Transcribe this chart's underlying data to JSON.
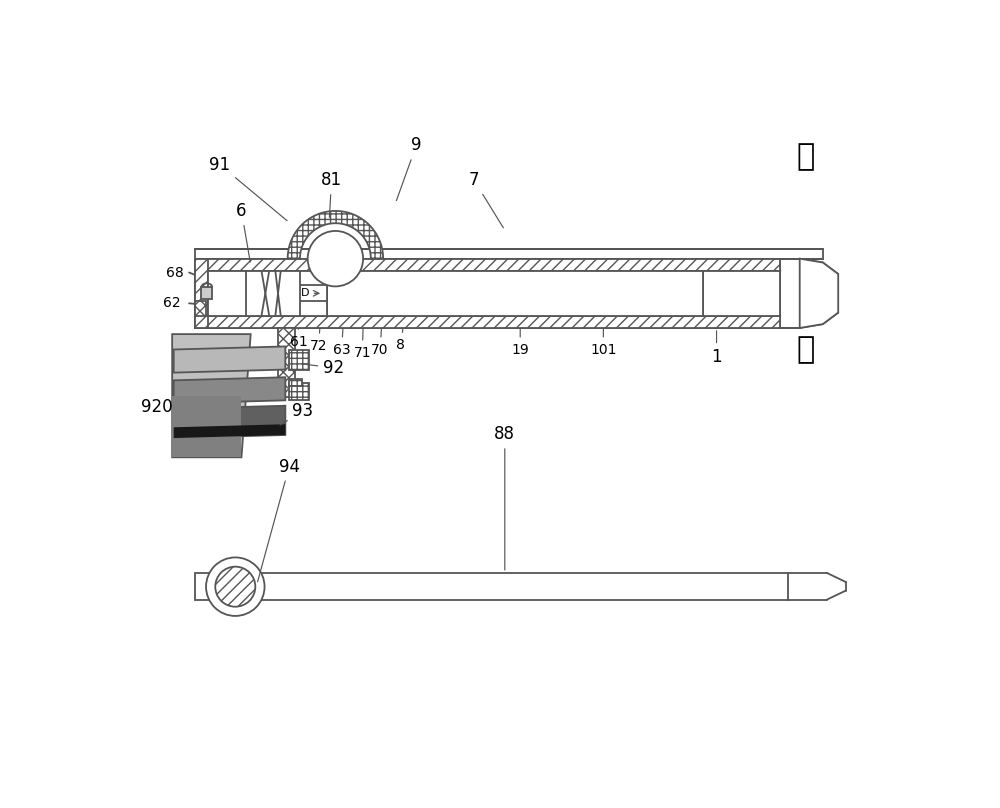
{
  "bg": "#ffffff",
  "lc": "#555555",
  "lw": 1.3,
  "top_label": "上",
  "bot_label": "下",
  "grays": {
    "slat1": "#b8b8b8",
    "slat2": "#888888",
    "slat3_top": "#606060",
    "slat3_bot": "#181818",
    "slab_light": "#c0c0c0",
    "slab_dark": "#808080"
  }
}
